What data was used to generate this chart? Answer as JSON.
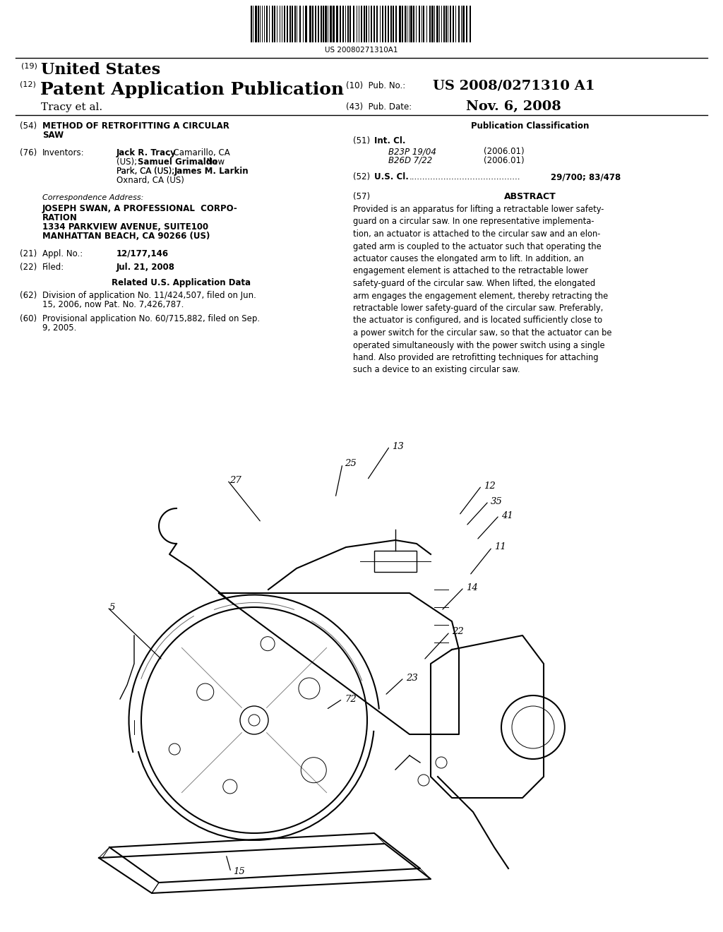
{
  "bg_color": "#ffffff",
  "barcode_text": "US 20080271310A1",
  "title_19_num": "(19) ",
  "title_19_text": "United States",
  "title_12_num": "(12) ",
  "title_12_text": "Patent Application Publication",
  "pub_no_label": "(10)  Pub. No.:",
  "pub_no_value": "US 2008/0271310 A1",
  "authors": "Tracy et al.",
  "pub_date_label": "(43)  Pub. Date:",
  "pub_date_value": "Nov. 6, 2008",
  "sec54_num": "(54)",
  "sec54_title": "METHOD OF RETROFITTING A CIRCULAR\nSAW",
  "pub_class_title": "Publication Classification",
  "sec51_num": "(51)",
  "sec51_label": "Int. Cl.",
  "int_cl_1_code": "B23P 19/04",
  "int_cl_1_year": "(2006.01)",
  "int_cl_2_code": "B26D 7/22",
  "int_cl_2_year": "(2006.01)",
  "sec52_num": "(52)",
  "sec52_label": "U.S. Cl.",
  "sec52_dots": "..........................................",
  "sec52_value": "29/700; 83/478",
  "sec76_num": "(76)",
  "sec76_label": "Inventors:",
  "corr_label": "Correspondence Address:",
  "corr_line1": "JOSEPH SWAN, A PROFESSIONAL  CORPO-",
  "corr_line2": "RATION",
  "corr_line3": "1334 PARKVIEW AVENUE, SUITE100",
  "corr_line4": "MANHATTAN BEACH, CA 90266 (US)",
  "sec21_num": "(21)",
  "sec21_label": "Appl. No.:",
  "sec21_value": "12/177,146",
  "sec22_num": "(22)",
  "sec22_label": "Filed:",
  "sec22_value": "Jul. 21, 2008",
  "related_title": "Related U.S. Application Data",
  "sec62_num": "(62)",
  "sec62_text": "Division of application No. 11/424,507, filed on Jun.\n15, 2006, now Pat. No. 7,426,787.",
  "sec60_num": "(60)",
  "sec60_text": "Provisional application No. 60/715,882, filed on Sep.\n9, 2005.",
  "sec57_num": "(57)",
  "sec57_label": "ABSTRACT",
  "abstract_text": "Provided is an apparatus for lifting a retractable lower safety-\nguard on a circular saw. In one representative implementa-\ntion, an actuator is attached to the circular saw and an elon-\ngated arm is coupled to the actuator such that operating the\nactuator causes the elongated arm to lift. In addition, an\nengagement element is attached to the retractable lower\nsafety-guard of the circular saw. When lifted, the elongated\narm engages the engagement element, thereby retracting the\nretractable lower safety-guard of the circular saw. Preferably,\nthe actuator is configured, and is located sufficiently close to\na power switch for the circular saw, so that the actuator can be\noperated simultaneously with the power switch using a single\nhand. Also provided are retrofitting techniques for attaching\nsuch a device to an existing circular saw."
}
